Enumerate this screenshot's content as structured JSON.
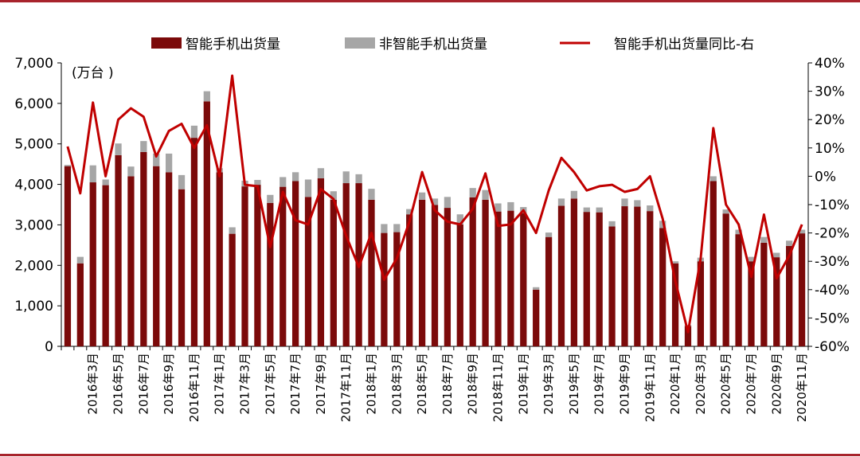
{
  "chart_data": {
    "type": "bar",
    "unit_label": "(万台 )",
    "x": [
      "2016年1月",
      "2016年2月",
      "2016年3月",
      "2016年4月",
      "2016年5月",
      "2016年6月",
      "2016年7月",
      "2016年8月",
      "2016年9月",
      "2016年10月",
      "2016年11月",
      "2016年12月",
      "2017年1月",
      "2017年2月",
      "2017年3月",
      "2017年4月",
      "2017年5月",
      "2017年6月",
      "2017年7月",
      "2017年8月",
      "2017年9月",
      "2017年10月",
      "2017年11月",
      "2017年12月",
      "2018年1月",
      "2018年2月",
      "2018年3月",
      "2018年4月",
      "2018年5月",
      "2018年6月",
      "2018年7月",
      "2018年8月",
      "2018年9月",
      "2018年10月",
      "2018年11月",
      "2018年12月",
      "2019年1月",
      "2019年2月",
      "2019年3月",
      "2019年4月",
      "2019年5月",
      "2019年6月",
      "2019年7月",
      "2019年8月",
      "2019年9月",
      "2019年10月",
      "2019年11月",
      "2019年12月",
      "2020年1月",
      "2020年2月",
      "2020年3月",
      "2020年4月",
      "2020年5月",
      "2020年6月",
      "2020年7月",
      "2020年8月",
      "2020年9月",
      "2020年10月",
      "2020年11月"
    ],
    "x_tick_labels": [
      "2016年3月",
      "2016年5月",
      "2016年7月",
      "2016年9月",
      "2016年11月",
      "2017年1月",
      "2017年3月",
      "2017年5月",
      "2017年7月",
      "2017年9月",
      "2017年11月",
      "2018年1月",
      "2018年3月",
      "2018年5月",
      "2018年7月",
      "2018年9月",
      "2018年11月",
      "2019年1月",
      "2019年3月",
      "2019年5月",
      "2019年7月",
      "2019年9月",
      "2019年11月",
      "2020年1月",
      "2020年3月",
      "2020年5月",
      "2020年7月",
      "2020年9月",
      "2020年11月"
    ],
    "series": [
      {
        "name": "智能手机出货量",
        "kind": "bar",
        "axis": "left",
        "color": "#7b0a0a",
        "values": [
          4450,
          2050,
          4050,
          3980,
          4720,
          4200,
          4800,
          4450,
          4300,
          3880,
          5150,
          6050,
          4300,
          2780,
          3950,
          3990,
          3540,
          3940,
          4080,
          3690,
          4150,
          3620,
          4030,
          4030,
          3620,
          2800,
          2820,
          3260,
          3620,
          3490,
          3420,
          3010,
          3680,
          3620,
          3330,
          3350,
          3290,
          1400,
          2700,
          3470,
          3650,
          3320,
          3310,
          2960,
          3460,
          3450,
          3340,
          2920,
          2050,
          500,
          2100,
          4080,
          3280,
          2770,
          2100,
          2560,
          2200,
          2480,
          2790
        ]
      },
      {
        "name": "非智能手机出货量",
        "kind": "bar",
        "axis": "left",
        "color": "#a6a6a6",
        "values": [
          30,
          160,
          420,
          140,
          290,
          240,
          270,
          310,
          460,
          350,
          300,
          250,
          100,
          160,
          140,
          120,
          200,
          240,
          220,
          430,
          250,
          210,
          290,
          220,
          270,
          220,
          200,
          130,
          180,
          160,
          270,
          250,
          230,
          240,
          200,
          210,
          150,
          60,
          110,
          180,
          190,
          110,
          120,
          130,
          190,
          160,
          140,
          180,
          50,
          30,
          90,
          120,
          100,
          110,
          110,
          140,
          110,
          130,
          90
        ]
      },
      {
        "name": "智能手机出货量同比-右",
        "kind": "line",
        "axis": "right",
        "color": "#c00000",
        "values": [
          10.5,
          -6,
          26,
          0,
          20,
          24,
          21,
          7,
          16,
          18.5,
          10,
          18,
          0,
          35.5,
          -3,
          -3.5,
          -25,
          -5.5,
          -15.5,
          -17,
          -4.5,
          -8,
          -21,
          -32,
          -20,
          -36.5,
          -29,
          -16,
          1.5,
          -12,
          -16,
          -17,
          -11.5,
          1,
          -17.5,
          -17,
          -12,
          -20,
          -5,
          6.5,
          1.5,
          -5,
          -3.5,
          -3,
          -5.5,
          -4.5,
          0,
          -15,
          -37,
          -55,
          -29,
          17,
          -10,
          -17,
          -35.5,
          -13.5,
          -36,
          -28,
          -17
        ]
      }
    ],
    "ylim_left": [
      0,
      7000
    ],
    "yticks_left": [
      "7,000",
      "6,000",
      "5,000",
      "4,000",
      "3,000",
      "2,000",
      "1,000",
      "0"
    ],
    "ylim_right": [
      -60,
      40
    ],
    "yticks_right": [
      "40%",
      "30%",
      "20%",
      "10%",
      "0%",
      "-10%",
      "-20%",
      "-30%",
      "-40%",
      "-50%",
      "-60%"
    ],
    "legend_position": "top",
    "grid": false
  }
}
